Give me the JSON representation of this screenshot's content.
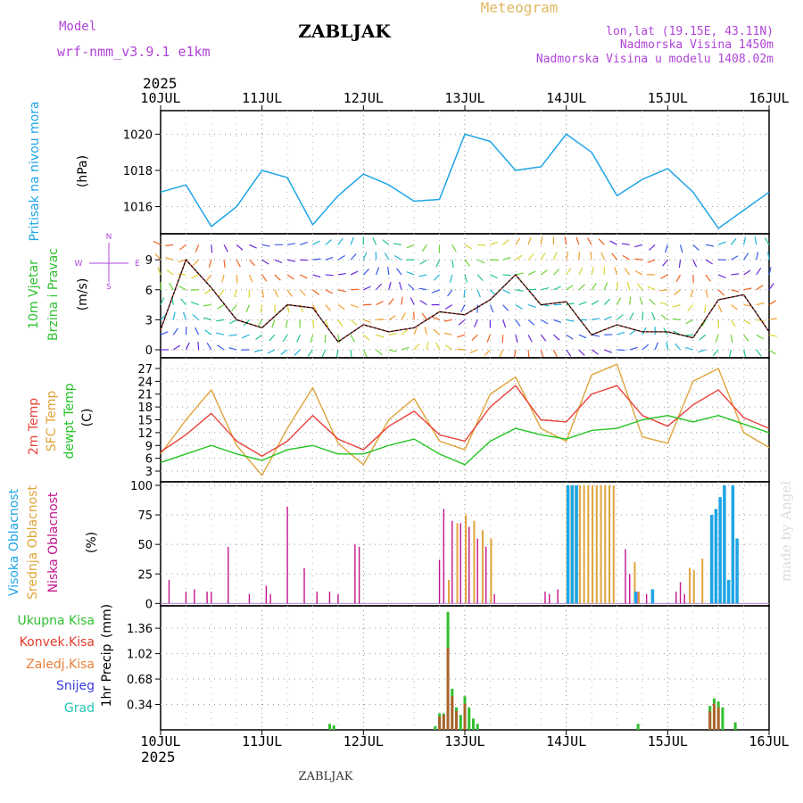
{
  "header": {
    "model_label": "Model",
    "model_name": "wrf-nmm_v3.9.1  e1km",
    "station": "ZABLJAK",
    "chart_type": "Meteogram",
    "coords": "lon,lat (19.15E, 43.11N)",
    "elevation": "Nadmorska Visina 1450m",
    "model_elevation": "Nadmorska Visina u modelu 1408.02m",
    "year_top": "2025",
    "year_bottom": "2025",
    "footer_station": "ZABLJAK",
    "watermark": "made by Angel"
  },
  "colors": {
    "pressure": "#1fa5e6",
    "temp2m": "#e8423a",
    "sfc": "#e0a43a",
    "dew": "#22c422",
    "high_cloud": "#1fa5e6",
    "mid_cloud": "#e0a43a",
    "low_cloud": "#c2158c",
    "total_precip": "#2fbf2f",
    "conv_precip": "#e23a2a",
    "frozen_precip": "#e8803a",
    "snow": "#3a3ae0",
    "graupel": "#22c4b4",
    "wind_label": "#2fbf2f",
    "compass": "#b044d8"
  },
  "chart_data": [
    {
      "type": "line",
      "panel": "pressure",
      "ylabel_title": "Pritisak na nivou mora",
      "unit": "(hPa)",
      "x_ticks": [
        "10JUL",
        "11JUL",
        "12JUL",
        "13JUL",
        "14JUL",
        "15JUL",
        "16JUL"
      ],
      "ylim": [
        1014.5,
        1021.3
      ],
      "y_ticks": [
        1016,
        1018,
        1020
      ],
      "grid": true,
      "x_hours": [
        0,
        6,
        12,
        18,
        24,
        30,
        36,
        42,
        48,
        54,
        60,
        66,
        72,
        78,
        84,
        90,
        96,
        102,
        108,
        114,
        120,
        126,
        132,
        138,
        144
      ],
      "values": [
        1016.8,
        1017.2,
        1014.9,
        1016.0,
        1018.0,
        1017.6,
        1015.0,
        1016.6,
        1017.8,
        1017.2,
        1016.3,
        1016.4,
        1020.0,
        1019.6,
        1018.0,
        1018.2,
        1020.0,
        1019.0,
        1016.6,
        1017.5,
        1018.1,
        1016.8,
        1014.8,
        1015.8,
        1016.8
      ]
    },
    {
      "type": "line",
      "panel": "wind",
      "ylabel_title": "10m Vjetar",
      "ylabel_sub": "Brzina i Pravac",
      "unit": "(m/s)",
      "compass": {
        "n": "N",
        "s": "S",
        "e": "E",
        "w": "W"
      },
      "ylim": [
        -0.8,
        11.6
      ],
      "y_ticks": [
        0,
        3,
        6,
        9
      ],
      "grid": true,
      "x_hours": [
        0,
        6,
        12,
        18,
        24,
        30,
        36,
        42,
        48,
        54,
        60,
        66,
        72,
        78,
        84,
        90,
        96,
        102,
        108,
        114,
        120,
        126,
        132,
        138,
        144
      ],
      "values": [
        2.0,
        9.0,
        6.2,
        3.0,
        2.2,
        4.5,
        4.2,
        0.8,
        2.5,
        1.8,
        2.2,
        3.8,
        3.5,
        5.0,
        7.5,
        4.5,
        4.8,
        1.5,
        2.5,
        1.8,
        1.8,
        1.2,
        5.0,
        5.5,
        1.8
      ]
    },
    {
      "type": "line",
      "panel": "temperature",
      "ylabel_title": "2m Temp",
      "ylabel_sub": "SFC Temp",
      "ylabel_sub2": "dewpt Temp",
      "unit": "(C)",
      "ylim": [
        0.5,
        29.5
      ],
      "y_ticks": [
        3,
        6,
        9,
        12,
        15,
        18,
        21,
        24,
        27
      ],
      "grid": true,
      "x_hours": [
        0,
        6,
        12,
        18,
        24,
        30,
        36,
        42,
        48,
        54,
        60,
        66,
        72,
        78,
        84,
        90,
        96,
        102,
        108,
        114,
        120,
        126,
        132,
        138,
        144
      ],
      "series": [
        {
          "name": "2m Temp",
          "values": [
            7.5,
            11.5,
            16.5,
            10.0,
            6.5,
            10.0,
            16.0,
            10.5,
            8.0,
            13.5,
            17.0,
            11.5,
            10.0,
            18.0,
            23.0,
            15.0,
            14.5,
            21.0,
            23.0,
            16.0,
            13.5,
            18.5,
            22.0,
            15.5,
            13.0
          ]
        },
        {
          "name": "SFC Temp",
          "values": [
            7.0,
            15.0,
            22.0,
            9.0,
            2.0,
            13.0,
            22.5,
            9.5,
            4.5,
            15.0,
            20.0,
            10.0,
            8.0,
            21.0,
            25.0,
            13.0,
            10.0,
            25.5,
            28.0,
            11.0,
            9.5,
            24.0,
            27.0,
            12.0,
            8.5
          ]
        },
        {
          "name": "dewpt Temp",
          "values": [
            5.0,
            7.0,
            9.0,
            7.0,
            5.5,
            8.0,
            9.0,
            7.0,
            7.0,
            9.0,
            10.5,
            7.0,
            4.5,
            10.0,
            13.0,
            11.5,
            10.5,
            12.5,
            13.0,
            15.0,
            16.0,
            14.5,
            16.0,
            14.0,
            12.0
          ]
        }
      ]
    },
    {
      "type": "bar",
      "panel": "clouds",
      "ylabel_title": "Visoka Oblacnost",
      "ylabel_sub": "Srednja Oblacnost",
      "ylabel_sub2": "Niska Oblacnost",
      "unit": "(%)",
      "ylim": [
        -2,
        103
      ],
      "y_ticks": [
        0,
        25,
        50,
        75,
        100
      ],
      "grid": true,
      "series": [
        {
          "name": "Niska Oblacnost",
          "x_hours": [
            2,
            6,
            8,
            11,
            12,
            16,
            21,
            25,
            26,
            30,
            34,
            37,
            40,
            42,
            46,
            47,
            66,
            67,
            69,
            71,
            73,
            75,
            77,
            79,
            91,
            92,
            94,
            110,
            111,
            113,
            115,
            122,
            123,
            124
          ],
          "values": [
            20,
            10,
            12,
            10,
            10,
            48,
            8,
            15,
            8,
            82,
            30,
            10,
            10,
            8,
            50,
            48,
            37,
            80,
            70,
            68,
            65,
            55,
            48,
            8,
            10,
            8,
            12,
            46,
            25,
            10,
            8,
            10,
            18,
            8
          ]
        },
        {
          "name": "Srednja Oblacnost",
          "x_hours": [
            68,
            70,
            72,
            74,
            76,
            78,
            96,
            97,
            98,
            99,
            100,
            101,
            102,
            103,
            104,
            105,
            106,
            107,
            112,
            113,
            125,
            126,
            128
          ],
          "values": [
            20,
            68,
            75,
            70,
            62,
            55,
            100,
            100,
            100,
            100,
            100,
            100,
            100,
            100,
            100,
            100,
            100,
            100,
            35,
            10,
            30,
            28,
            38
          ]
        },
        {
          "name": "Visoka Oblacnost",
          "x_hours": [
            96,
            97,
            98,
            112,
            116,
            130,
            131,
            132,
            133,
            134,
            135,
            136
          ],
          "values": [
            100,
            100,
            100,
            10,
            12,
            75,
            80,
            90,
            100,
            20,
            100,
            55
          ]
        }
      ]
    },
    {
      "type": "bar",
      "panel": "precipitation",
      "ylabel_title": "1hr Precip",
      "unit": "(mm)",
      "legend": [
        "Ukupna Kisa",
        "Konvek.Kisa",
        "Zaledj.Kisa",
        "Snijeg",
        "Grad"
      ],
      "ylim": [
        0,
        1.66
      ],
      "y_ticks": [
        0.34,
        0.68,
        1.02,
        1.36
      ],
      "grid": true,
      "x_ticks": [
        "10JUL",
        "11JUL",
        "12JUL",
        "13JUL",
        "14JUL",
        "15JUL",
        "16JUL"
      ],
      "series": [
        {
          "name": "Ukupna Kisa",
          "x_hours": [
            40,
            41,
            65,
            66,
            67,
            68,
            69,
            70,
            71,
            72,
            73,
            74,
            75,
            113,
            130,
            131,
            132,
            133,
            136
          ],
          "values": [
            0.08,
            0.06,
            0.05,
            0.22,
            0.22,
            1.58,
            0.55,
            0.3,
            0.2,
            0.45,
            0.3,
            0.15,
            0.08,
            0.08,
            0.32,
            0.42,
            0.38,
            0.3,
            0.1
          ]
        },
        {
          "name": "Konvek.Kisa",
          "x_hours": [
            66,
            67,
            68,
            69,
            70,
            72,
            130,
            131,
            132
          ],
          "values": [
            0.18,
            0.2,
            1.1,
            0.45,
            0.25,
            0.35,
            0.25,
            0.35,
            0.3
          ]
        }
      ]
    }
  ]
}
